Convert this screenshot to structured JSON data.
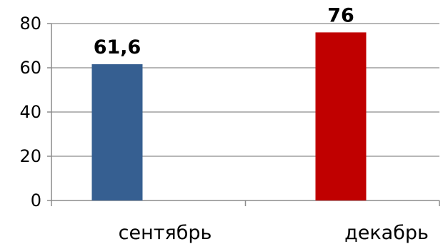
{
  "chart_data": {
    "type": "bar",
    "categories": [
      "сентябрь",
      "декабрь"
    ],
    "values": [
      61.6,
      76
    ],
    "data_labels": [
      "61,6",
      "76"
    ],
    "bar_colors": [
      "#365f91",
      "#c00000"
    ],
    "title": "",
    "xlabel": "",
    "ylabel": "",
    "ylim": [
      0,
      80
    ],
    "yticks": [
      0,
      20,
      40,
      60,
      80
    ],
    "ytick_labels": [
      "0",
      "20",
      "40",
      "60",
      "80"
    ],
    "grid": true,
    "legend": "none"
  }
}
